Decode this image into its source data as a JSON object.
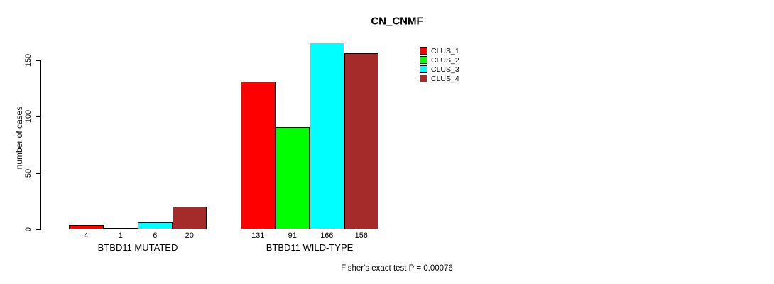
{
  "chart_data": {
    "type": "bar",
    "title": "CN_CNMF",
    "ylabel": "number of cases",
    "xlabel": "",
    "ylim": [
      0,
      170
    ],
    "yticks": [
      0,
      50,
      100,
      150
    ],
    "grid": false,
    "legend_position": "top-right",
    "categories": [
      "BTBD11 MUTATED",
      "BTBD11 WILD-TYPE"
    ],
    "series": [
      {
        "name": "CLUS_1",
        "color": "#ff0000",
        "values": [
          4,
          131
        ]
      },
      {
        "name": "CLUS_2",
        "color": "#00ff00",
        "values": [
          1,
          91
        ]
      },
      {
        "name": "CLUS_3",
        "color": "#00ffff",
        "values": [
          6,
          166
        ]
      },
      {
        "name": "CLUS_4",
        "color": "#a52a2a",
        "values": [
          20,
          156
        ]
      }
    ],
    "bar_value_labels": [
      [
        "4",
        "1",
        "6",
        "20"
      ],
      [
        "131",
        "91",
        "166",
        "156"
      ]
    ],
    "annotation": "Fisher's exact test P = 0.00076"
  }
}
